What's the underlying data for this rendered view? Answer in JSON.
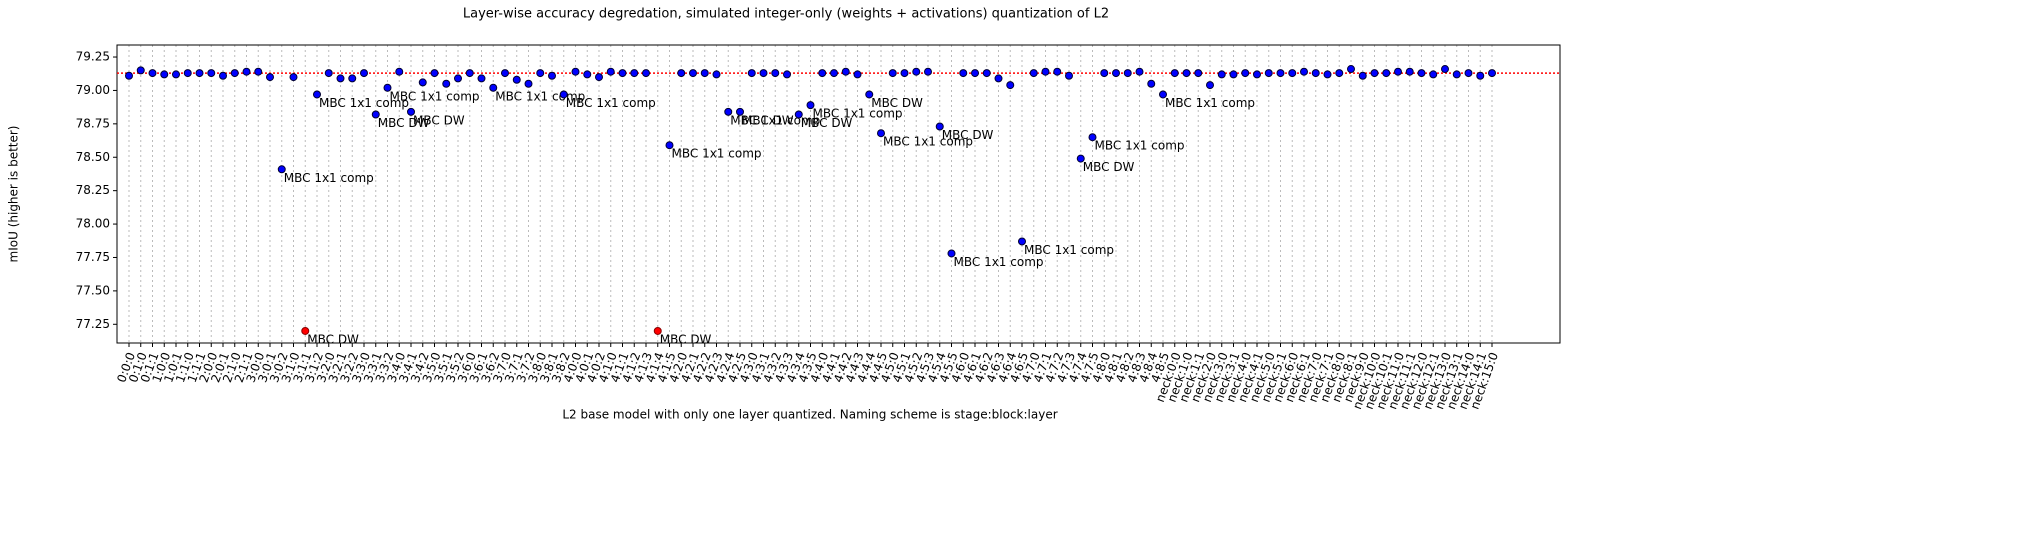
{
  "chart_data": {
    "type": "scatter",
    "title": "Layer-wise accuracy degredation, simulated integer-only (weights + activations) quantization of L2",
    "xlabel": "L2 base model with only one layer quantized. Naming scheme is stage:block:layer",
    "ylabel": "mIoU (higher is better)",
    "categories": [
      "0:0:0",
      "0:1:0",
      "0:1:1",
      "1:0:0",
      "1:0:1",
      "1:1:0",
      "1:1:1",
      "2:0:0",
      "2:0:1",
      "2:1:0",
      "2:1:1",
      "3:0:0",
      "3:0:1",
      "3:0:2",
      "3:1:0",
      "3:1:1",
      "3:1:2",
      "3:2:0",
      "3:2:1",
      "3:2:2",
      "3:3:0",
      "3:3:1",
      "3:3:2",
      "3:4:0",
      "3:4:1",
      "3:4:2",
      "3:5:0",
      "3:5:1",
      "3:5:2",
      "3:6:0",
      "3:6:1",
      "3:6:2",
      "3:7:0",
      "3:7:1",
      "3:7:2",
      "3:8:0",
      "3:8:1",
      "3:8:2",
      "4:0:0",
      "4:0:1",
      "4:0:2",
      "4:1:0",
      "4:1:1",
      "4:1:2",
      "4:1:3",
      "4:1:4",
      "4:1:5",
      "4:2:0",
      "4:2:1",
      "4:2:2",
      "4:2:3",
      "4:2:4",
      "4:2:5",
      "4:3:0",
      "4:3:1",
      "4:3:2",
      "4:3:3",
      "4:3:4",
      "4:3:5",
      "4:4:0",
      "4:4:1",
      "4:4:2",
      "4:4:3",
      "4:4:4",
      "4:4:5",
      "4:5:0",
      "4:5:1",
      "4:5:2",
      "4:5:3",
      "4:5:4",
      "4:5:5",
      "4:6:0",
      "4:6:1",
      "4:6:2",
      "4:6:3",
      "4:6:4",
      "4:6:5",
      "4:7:0",
      "4:7:1",
      "4:7:2",
      "4:7:3",
      "4:7:4",
      "4:7:5",
      "4:8:0",
      "4:8:1",
      "4:8:2",
      "4:8:3",
      "4:8:4",
      "4:8:5",
      "neck:0:0",
      "neck:1:0",
      "neck:1:1",
      "neck:2:0",
      "neck:3:0",
      "neck:3:1",
      "neck:4:0",
      "neck:4:1",
      "neck:5:0",
      "neck:5:1",
      "neck:6:0",
      "neck:6:1",
      "neck:7:0",
      "neck:7:1",
      "neck:8:0",
      "neck:8:1",
      "neck:9:0",
      "neck:10:0",
      "neck:10:1",
      "neck:11:0",
      "neck:11:1",
      "neck:12:0",
      "neck:12:1",
      "neck:13:0",
      "neck:13:1",
      "neck:14:0",
      "neck:14:1",
      "neck:15:0"
    ],
    "values": [
      79.11,
      79.15,
      79.13,
      79.12,
      79.12,
      79.13,
      79.13,
      79.13,
      79.11,
      79.13,
      79.14,
      79.14,
      79.1,
      78.41,
      79.1,
      77.2,
      78.97,
      79.13,
      79.09,
      79.09,
      79.13,
      78.82,
      79.02,
      79.14,
      78.84,
      79.06,
      79.13,
      79.05,
      79.09,
      79.13,
      79.09,
      79.02,
      79.13,
      79.08,
      79.05,
      79.13,
      79.11,
      78.97,
      79.14,
      79.12,
      79.1,
      79.14,
      79.13,
      79.13,
      79.13,
      77.2,
      78.59,
      79.13,
      79.13,
      79.13,
      79.12,
      78.84,
      78.84,
      79.13,
      79.13,
      79.13,
      79.12,
      78.82,
      78.89,
      79.13,
      79.13,
      79.14,
      79.12,
      78.97,
      78.68,
      79.13,
      79.13,
      79.14,
      79.14,
      78.73,
      77.78,
      79.13,
      79.13,
      79.13,
      79.09,
      79.04,
      77.87,
      79.13,
      79.14,
      79.14,
      79.11,
      78.49,
      78.65,
      79.13,
      79.13,
      79.13,
      79.14,
      79.05,
      78.97,
      79.13,
      79.13,
      79.13,
      79.04,
      79.12,
      79.12,
      79.13,
      79.12,
      79.13,
      79.13,
      79.13,
      79.14,
      79.13,
      79.12,
      79.13,
      79.16,
      79.11,
      79.13,
      79.13,
      79.14,
      79.14,
      79.13,
      79.12,
      79.16,
      79.12,
      79.13,
      79.11,
      79.13
    ],
    "point_labels": [
      null,
      null,
      null,
      null,
      null,
      null,
      null,
      null,
      null,
      null,
      null,
      null,
      null,
      "MBC 1x1 comp",
      null,
      "MBC DW",
      "MBC 1x1 comp",
      null,
      null,
      null,
      null,
      "MBC DW",
      "MBC 1x1 comp",
      null,
      "MBC DW",
      null,
      null,
      null,
      null,
      null,
      null,
      "MBC 1x1 comp",
      null,
      null,
      null,
      null,
      null,
      "MBC 1x1 comp",
      null,
      null,
      null,
      null,
      null,
      null,
      null,
      "MBC DW",
      "MBC 1x1 comp",
      null,
      null,
      null,
      null,
      "MBC 1x1 comp",
      "MBC DW",
      null,
      null,
      null,
      null,
      "MBC DW",
      "MBC 1x1 comp",
      null,
      null,
      null,
      null,
      "MBC DW",
      "MBC 1x1 comp",
      null,
      null,
      null,
      null,
      "MBC DW",
      "MBC 1x1 comp",
      null,
      null,
      null,
      null,
      null,
      "MBC 1x1 comp",
      null,
      null,
      null,
      null,
      "MBC DW",
      "MBC 1x1 comp",
      null,
      null,
      null,
      null,
      null,
      "MBC 1x1 comp",
      null,
      null,
      null,
      null,
      null,
      null,
      null,
      null,
      null,
      null,
      null,
      null,
      null,
      null,
      null,
      null,
      null,
      null,
      null,
      null,
      null,
      null,
      null,
      null,
      null,
      null,
      null,
      null
    ],
    "color": "blue",
    "min_color": "red",
    "hline": 79.13,
    "hline_color": "red",
    "ylim": [
      77.11,
      79.34
    ],
    "yticks": [
      77.25,
      {
        "value": 77.5,
        "label": "77.50"
      },
      77.75,
      {
        "value": 78.0,
        "label": "78.00"
      },
      78.25,
      {
        "value": 78.5,
        "label": "78.50"
      },
      78.75,
      {
        "value": 79.0,
        "label": "79.00"
      },
      79.25
    ],
    "grid": true
  }
}
